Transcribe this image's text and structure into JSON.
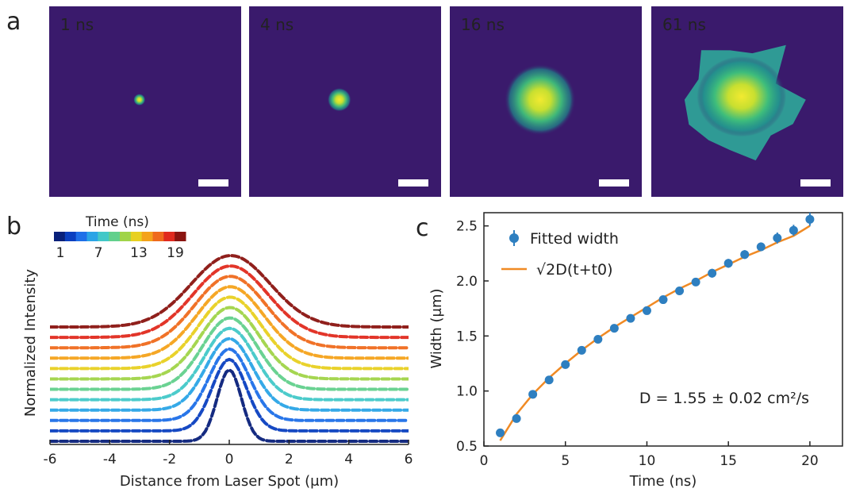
{
  "panel_labels": {
    "a": "a",
    "b": "b",
    "c": "c"
  },
  "images": [
    {
      "time": "1 ns",
      "spot_size": 0.05,
      "shape": "round"
    },
    {
      "time": "4 ns",
      "spot_size": 0.1,
      "shape": "round"
    },
    {
      "time": "16 ns",
      "spot_size": 0.3,
      "shape": "round"
    },
    {
      "time": "61 ns",
      "spot_size": 0.75,
      "shape": "irregular"
    }
  ],
  "colors": {
    "background": "#3a1a6c",
    "scale_bar": "#ffffff",
    "fit_line": "#f08a24",
    "markers": "#2e7fc0"
  },
  "chart_data": [
    {
      "type": "line",
      "panel": "b",
      "xlabel": "Distance from Laser Spot (μm)",
      "ylabel": "Normalized Intensity",
      "xlim": [
        -6,
        6
      ],
      "xticks": [
        "-6",
        "-4",
        "-2",
        "0",
        "2",
        "4",
        "6"
      ],
      "colorbar": {
        "title": "Time (ns)",
        "ticks": [
          "1",
          "7",
          "13",
          "19"
        ],
        "colors": [
          "#08207a",
          "#0a3fc0",
          "#1e6fe8",
          "#2aa4e6",
          "#42c8c8",
          "#62d08c",
          "#a0d448",
          "#e8d020",
          "#f4a21a",
          "#ef6a1c",
          "#e02a1e",
          "#8a1410"
        ]
      },
      "series": [
        {
          "time": 1,
          "color": "#08207a",
          "offset": 0.0,
          "width": 0.6
        },
        {
          "time": 2,
          "color": "#0a3fc0",
          "offset": 0.55,
          "width": 0.85
        },
        {
          "time": 3,
          "color": "#1e6fe8",
          "offset": 1.1,
          "width": 1.0
        },
        {
          "time": 5,
          "color": "#2aa4e6",
          "offset": 1.65,
          "width": 1.15
        },
        {
          "time": 6,
          "color": "#42c8c8",
          "offset": 2.2,
          "width": 1.25
        },
        {
          "time": 8,
          "color": "#62d08c",
          "offset": 2.75,
          "width": 1.35
        },
        {
          "time": 10,
          "color": "#a0d448",
          "offset": 3.3,
          "width": 1.45
        },
        {
          "time": 11,
          "color": "#e8d020",
          "offset": 3.85,
          "width": 1.55
        },
        {
          "time": 13,
          "color": "#f4a21a",
          "offset": 4.4,
          "width": 1.65
        },
        {
          "time": 15,
          "color": "#ef6a1c",
          "offset": 4.95,
          "width": 1.75
        },
        {
          "time": 17,
          "color": "#e02a1e",
          "offset": 5.5,
          "width": 1.85
        },
        {
          "time": 19,
          "color": "#8a1410",
          "offset": 6.05,
          "width": 1.95
        }
      ]
    },
    {
      "type": "scatter",
      "panel": "c",
      "xlabel": "Time (ns)",
      "ylabel": "Width (μm)",
      "xlim": [
        0,
        22
      ],
      "ylim": [
        0.5,
        2.62
      ],
      "xticks": [
        "0",
        "5",
        "10",
        "15",
        "20"
      ],
      "yticks": [
        "0.5",
        "1.0",
        "1.5",
        "2.0",
        "2.5"
      ],
      "legend": {
        "position": "top-left",
        "points_label": "Fitted width",
        "fit_label": "√2D(t+t0)"
      },
      "annotation": "D = 1.55 ± 0.02 cm²/s",
      "points": {
        "x": [
          1,
          2,
          3,
          4,
          5,
          6,
          7,
          8,
          9,
          10,
          11,
          12,
          13,
          14,
          15,
          16,
          17,
          18,
          19,
          20
        ],
        "y": [
          0.62,
          0.75,
          0.97,
          1.1,
          1.24,
          1.37,
          1.47,
          1.57,
          1.66,
          1.73,
          1.83,
          1.91,
          1.99,
          2.07,
          2.16,
          2.24,
          2.31,
          2.39,
          2.46,
          2.56
        ],
        "yerr": [
          0.03,
          0.03,
          0.03,
          0.03,
          0.03,
          0.03,
          0.03,
          0.03,
          0.03,
          0.03,
          0.03,
          0.03,
          0.03,
          0.04,
          0.04,
          0.04,
          0.04,
          0.05,
          0.05,
          0.06
        ]
      },
      "fit": {
        "x": [
          1,
          2,
          3,
          4,
          5,
          6,
          7,
          8,
          9,
          10,
          11,
          12,
          13,
          14,
          15,
          16,
          17,
          18,
          19,
          20
        ],
        "y": [
          0.55,
          0.79,
          0.97,
          1.12,
          1.25,
          1.37,
          1.48,
          1.58,
          1.67,
          1.76,
          1.85,
          1.93,
          2.0,
          2.08,
          2.15,
          2.22,
          2.28,
          2.35,
          2.41,
          2.5
        ]
      }
    }
  ]
}
